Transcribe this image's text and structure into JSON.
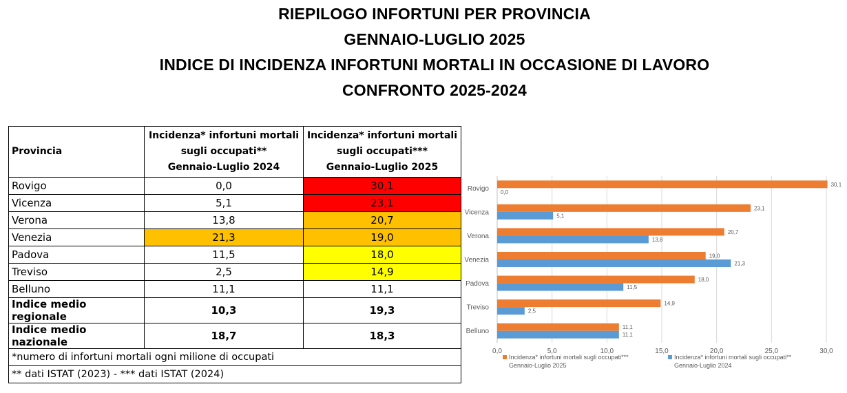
{
  "titles": [
    "RIEPILOGO INFORTUNI PER PROVINCIA",
    "GENNAIO-LUGLIO 2025",
    "INDICE DI INCIDENZA INFORTUNI MORTALI IN OCCASIONE DI LAVORO",
    "CONFRONTO 2025-2024"
  ],
  "table": {
    "headers": {
      "provincia": "Provincia",
      "col2024": [
        "Incidenza* infortuni mortali",
        "sugli occupati**",
        "Gennaio-Luglio 2024"
      ],
      "col2025": [
        "Incidenza* infortuni mortali",
        "sugli occupati***",
        "Gennaio-Luglio 2025"
      ]
    },
    "rows": [
      {
        "name": "Rovigo",
        "v2024": "0,0",
        "v2025": "30,1"
      },
      {
        "name": "Vicenza",
        "v2024": "5,1",
        "v2025": "23,1"
      },
      {
        "name": "Verona",
        "v2024": "13,8",
        "v2025": "20,7"
      },
      {
        "name": "Venezia",
        "v2024": "21,3",
        "v2025": "19,0"
      },
      {
        "name": "Padova",
        "v2024": "11,5",
        "v2025": "18,0"
      },
      {
        "name": "Treviso",
        "v2024": "2,5",
        "v2025": "14,9"
      },
      {
        "name": "Belluno",
        "v2024": "11,1",
        "v2025": "11,1"
      },
      {
        "name": "Indice medio regionale",
        "v2024": "10,3",
        "v2025": "19,3"
      },
      {
        "name": "Indice medio nazionale",
        "v2024": "18,7",
        "v2025": "18,3"
      }
    ],
    "notes": [
      "*numero di infortuni mortali ogni milione di occupati",
      "** dati ISTAT (2023) - *** dati ISTAT (2024)"
    ],
    "highlight_colors": {
      "red": "#ff0000",
      "orange": "#ffc000",
      "yellow": "#ffff00"
    }
  },
  "chart_data": {
    "type": "bar",
    "orientation": "horizontal",
    "categories": [
      "Rovigo",
      "Vicenza",
      "Verona",
      "Venezia",
      "Padova",
      "Treviso",
      "Belluno"
    ],
    "series": [
      {
        "name": "Incidenza* infortuni mortali  sugli occupati*** Gennaio-Luglio 2025",
        "legend_lines": [
          "Incidenza* infortuni mortali  sugli occupati***",
          "Gennaio-Luglio 2025"
        ],
        "color": "#ed7d31",
        "values": [
          30.1,
          23.1,
          20.7,
          19.0,
          18.0,
          14.9,
          11.1
        ],
        "labels": [
          "30,1",
          "23,1",
          "20,7",
          "19,0",
          "18,0",
          "14,9",
          "11,1"
        ]
      },
      {
        "name": "Incidenza* infortuni mortali  sugli occupati** Gennaio-Luglio 2024",
        "legend_lines": [
          "Incidenza* infortuni mortali  sugli occupati**",
          "Gennaio-Luglio 2024"
        ],
        "color": "#5b9bd5",
        "values": [
          0.0,
          5.1,
          13.8,
          21.3,
          11.5,
          2.5,
          11.1
        ],
        "labels": [
          "0,0",
          "5,1",
          "13,8",
          "21,3",
          "11,5",
          "2,5",
          "11,1"
        ]
      }
    ],
    "xlim": [
      0,
      30
    ],
    "xticks": [
      0,
      5,
      10,
      15,
      20,
      25,
      30
    ],
    "xtick_labels": [
      "0,0",
      "5,0",
      "10,0",
      "15,0",
      "20,0",
      "25,0",
      "30,0"
    ],
    "grid": "vertical",
    "legend": "bottom"
  }
}
